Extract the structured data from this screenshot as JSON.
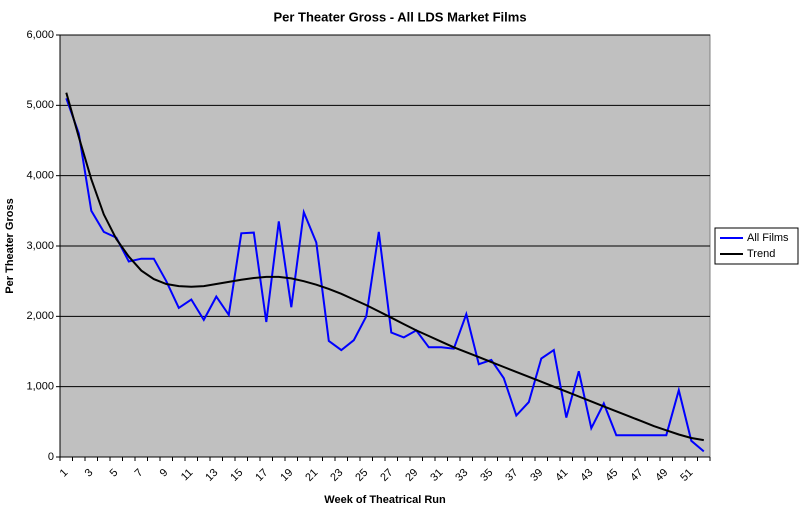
{
  "chart_data": {
    "type": "line",
    "title": "Per Theater Gross - All LDS Market Films",
    "x_label": "Week of Theatrical Run",
    "y_label": "Per Theater Gross",
    "categories": [
      "1",
      null,
      "3",
      null,
      "5",
      null,
      "7",
      null,
      "9",
      null,
      "11",
      null,
      "13",
      null,
      "15",
      null,
      "17",
      null,
      "19",
      null,
      "21",
      null,
      "23",
      null,
      "25",
      null,
      "27",
      null,
      "29",
      null,
      "31",
      null,
      "33",
      null,
      "35",
      null,
      "37",
      null,
      "39",
      null,
      "41",
      null,
      "43",
      null,
      "45",
      null,
      "47",
      null,
      "49",
      null,
      "51",
      null
    ],
    "series": [
      {
        "name": "All Films",
        "color": "#0000ff",
        "values": [
          5100,
          4600,
          3500,
          3200,
          3120,
          2780,
          2820,
          2820,
          2500,
          2120,
          2240,
          1950,
          2280,
          2020,
          3180,
          3190,
          1920,
          3350,
          2130,
          3480,
          3050,
          1650,
          1520,
          1660,
          2000,
          3200,
          1770,
          1700,
          1800,
          1560,
          1560,
          1540,
          2030,
          1320,
          1380,
          1120,
          590,
          780,
          1400,
          1520,
          560,
          1220,
          410,
          760,
          310,
          310,
          310,
          310,
          310,
          950,
          230,
          80
        ]
      },
      {
        "name": "Trend",
        "color": "#000000",
        "values": [
          5180,
          4550,
          3950,
          3450,
          3100,
          2850,
          2650,
          2530,
          2460,
          2430,
          2420,
          2430,
          2460,
          2490,
          2520,
          2545,
          2560,
          2560,
          2540,
          2500,
          2450,
          2390,
          2320,
          2240,
          2160,
          2070,
          1980,
          1890,
          1800,
          1720,
          1640,
          1560,
          1490,
          1420,
          1350,
          1280,
          1210,
          1140,
          1070,
          1000,
          930,
          860,
          790,
          720,
          650,
          580,
          510,
          440,
          380,
          320,
          270,
          240
        ]
      }
    ],
    "ylim": [
      0,
      6000
    ],
    "yticks": [
      0,
      {
        "value": 1000,
        "label": "1,000"
      },
      {
        "value": 2000,
        "label": "2,000"
      },
      {
        "value": 3000,
        "label": "3,000"
      },
      {
        "value": 4000,
        "label": "4,000"
      },
      {
        "value": 5000,
        "label": "5,000"
      },
      {
        "value": 6000,
        "label": "6,000"
      }
    ],
    "grid": true,
    "plot_background": "#c0c0c0",
    "legend": "right"
  }
}
